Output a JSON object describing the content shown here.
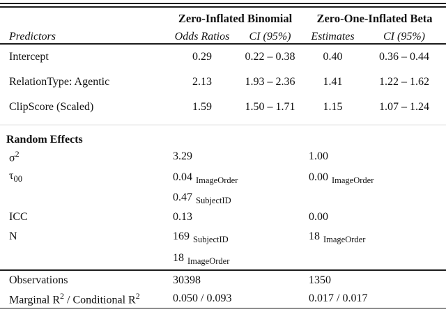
{
  "models": [
    "Zero-Inflated Binomial",
    "Zero-One-Inflated Beta"
  ],
  "columns": {
    "predictors": "Predictors",
    "odds_ratios": "Odds Ratios",
    "ci_zib": "CI (95%)",
    "estimates": "Estimates",
    "ci_zoib": "CI (95%)"
  },
  "predictors": [
    {
      "label": "Intercept",
      "odds_ratio": "0.29",
      "or_ci": "0.22 – 0.38",
      "estimate": "0.40",
      "est_ci": "0.36 – 0.44"
    },
    {
      "label": "RelationType: Agentic",
      "odds_ratio": "2.13",
      "or_ci": "1.93 – 2.36",
      "estimate": "1.41",
      "est_ci": "1.22 – 1.62"
    },
    {
      "label": "ClipScore (Scaled)",
      "odds_ratio": "1.59",
      "or_ci": "1.50 – 1.71",
      "estimate": "1.15",
      "est_ci": "1.07 – 1.24"
    }
  ],
  "random_effects": {
    "title": "Random Effects",
    "sigma2": {
      "symbol": "σ",
      "sup": "2",
      "zib": "3.29",
      "zoib": "1.00"
    },
    "tau00": {
      "symbol": "τ",
      "sub": "00",
      "zib_1": "0.04",
      "zib_1_group": "ImageOrder",
      "zib_2": "0.47",
      "zib_2_group": "SubjectID",
      "zoib_1": "0.00",
      "zoib_1_group": "ImageOrder"
    },
    "icc": {
      "label": "ICC",
      "zib": "0.13",
      "zoib": "0.00"
    },
    "n": {
      "label": "N",
      "zib_1": "169",
      "zib_1_group": "SubjectID",
      "zib_2": "18",
      "zib_2_group": "ImageOrder",
      "zoib_1": "18",
      "zoib_1_group": "ImageOrder"
    }
  },
  "footer": {
    "observations": {
      "label": "Observations",
      "zib": "30398",
      "zoib": "1350"
    },
    "r2": {
      "label_1": "Marginal R",
      "sup_1": "2",
      "label_2": " / Conditional R",
      "sup_2": "2",
      "zib": "0.050 / 0.093",
      "zoib": "0.017 / 0.017"
    }
  }
}
